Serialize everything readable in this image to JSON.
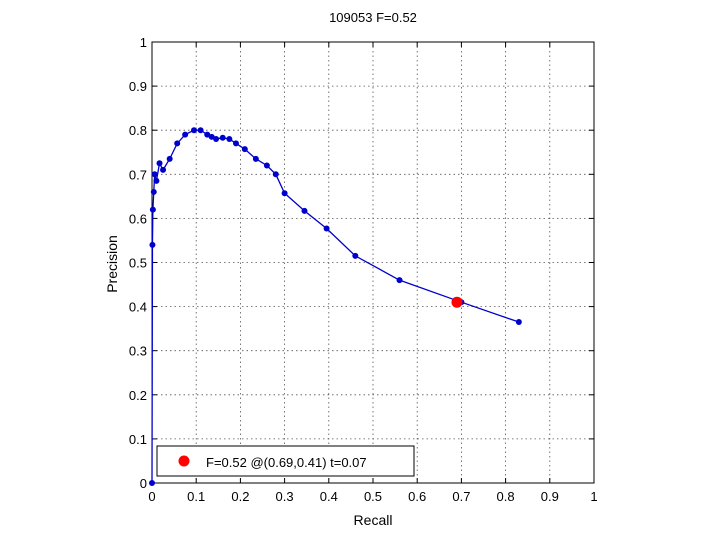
{
  "chart_data": {
    "type": "line",
    "title": "109053 F=0.52",
    "xlabel": "Recall",
    "ylabel": "Precision",
    "xlim": [
      0,
      1
    ],
    "ylim": [
      0,
      1
    ],
    "xticks": [
      "0",
      "0.1",
      "0.2",
      "0.3",
      "0.4",
      "0.5",
      "0.6",
      "0.7",
      "0.8",
      "0.9",
      "1"
    ],
    "yticks": [
      "0",
      "0.1",
      "0.2",
      "0.3",
      "0.4",
      "0.5",
      "0.6",
      "0.7",
      "0.8",
      "0.9",
      "1"
    ],
    "grid": true,
    "legend_placement": "bottom-left",
    "colors": {
      "curve": "#0000cc",
      "marker": "#ff0000"
    },
    "series": [
      {
        "x": [
          0.0,
          0.001,
          0.002,
          0.004,
          0.006,
          0.01,
          0.017,
          0.025,
          0.04,
          0.057,
          0.075,
          0.095,
          0.11,
          0.125,
          0.135,
          0.145,
          0.16,
          0.175,
          0.19,
          0.21,
          0.235,
          0.26,
          0.28,
          0.3,
          0.345,
          0.395,
          0.46,
          0.56,
          0.7,
          0.83
        ],
        "y": [
          0.0,
          0.54,
          0.62,
          0.66,
          0.7,
          0.685,
          0.725,
          0.71,
          0.735,
          0.77,
          0.79,
          0.8,
          0.8,
          0.79,
          0.785,
          0.78,
          0.783,
          0.78,
          0.77,
          0.757,
          0.735,
          0.72,
          0.7,
          0.657,
          0.617,
          0.577,
          0.515,
          0.46,
          0.41,
          0.365
        ]
      }
    ],
    "highlight_point": {
      "x": 0.69,
      "y": 0.41
    },
    "legend": {
      "label": "F=0.52 @(0.69,0.41) t=0.07"
    }
  }
}
